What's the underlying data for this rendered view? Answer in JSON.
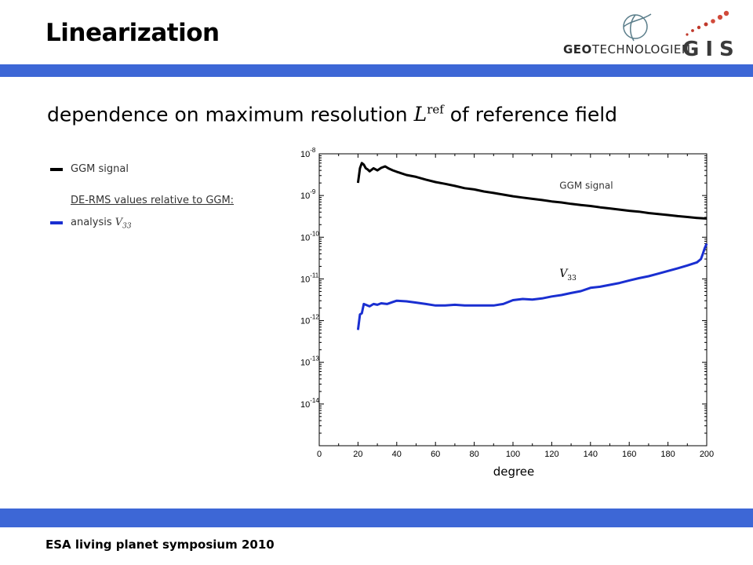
{
  "slide": {
    "title": "Linearization",
    "subtitle_prefix": "dependence on maximum resolution",
    "subtitle_symbol": "L",
    "subtitle_sup": "ref",
    "subtitle_suffix": "of reference field",
    "footer": "ESA living planet symposium 2010",
    "logo_geo_bold": "GEO",
    "logo_geo_light": "TECHNOLOGIEN",
    "logo_gis": "GIS"
  },
  "legend": {
    "signal_label": "GGM signal",
    "heading": "DE-RMS values relative to GGM:",
    "analysis_prefix": "analysis",
    "analysis_symbol": "V",
    "analysis_sub": "33"
  },
  "colors": {
    "band": "#3d67d6",
    "signal": "#000000",
    "analysis": "#1a2fd1"
  },
  "chart_data": {
    "type": "line",
    "xlabel": "degree",
    "ylabel": "",
    "xlim": [
      0,
      200
    ],
    "ylim": [
      1e-15,
      1e-08
    ],
    "yscale": "log",
    "grid": false,
    "x_ticks": [
      "0",
      "20",
      "40",
      "60",
      "80",
      "100",
      "120",
      "140",
      "160",
      "180",
      "200"
    ],
    "y_ticks": [
      {
        "base": "10",
        "exp": "-8"
      },
      {
        "base": "10",
        "exp": "-9"
      },
      {
        "base": "10",
        "exp": "-10"
      },
      {
        "base": "10",
        "exp": "-11"
      },
      {
        "base": "10",
        "exp": "-12"
      },
      {
        "base": "10",
        "exp": "-13"
      },
      {
        "base": "10",
        "exp": "-14"
      }
    ],
    "series": [
      {
        "name": "GGM signal",
        "label_text": "GGM signal",
        "x": [
          20,
          21,
          22,
          23,
          24,
          25,
          26,
          28,
          30,
          32,
          34,
          36,
          38,
          40,
          45,
          50,
          55,
          60,
          65,
          70,
          75,
          80,
          85,
          90,
          95,
          100,
          105,
          110,
          115,
          120,
          125,
          130,
          135,
          140,
          145,
          150,
          155,
          160,
          165,
          170,
          175,
          180,
          185,
          190,
          195,
          200
        ],
        "y": [
          2e-09,
          4.5e-09,
          6e-09,
          5.5e-09,
          4.5e-09,
          4.2e-09,
          3.8e-09,
          4.5e-09,
          4e-09,
          4.6e-09,
          5e-09,
          4.4e-09,
          4e-09,
          3.7e-09,
          3.1e-09,
          2.8e-09,
          2.4e-09,
          2.1e-09,
          1.9e-09,
          1.7e-09,
          1.5e-09,
          1.4e-09,
          1.25e-09,
          1.15e-09,
          1.05e-09,
          9.6e-10,
          8.9e-10,
          8.3e-10,
          7.8e-10,
          7.2e-10,
          6.8e-10,
          6.3e-10,
          5.9e-10,
          5.6e-10,
          5.2e-10,
          4.9e-10,
          4.6e-10,
          4.3e-10,
          4.1e-10,
          3.8e-10,
          3.6e-10,
          3.4e-10,
          3.2e-10,
          3.05e-10,
          2.9e-10,
          2.8e-10
        ]
      },
      {
        "name": "V 33",
        "label_symbol": "V",
        "label_sub": "33",
        "x": [
          20,
          21,
          22,
          23,
          24,
          26,
          28,
          30,
          32,
          35,
          38,
          40,
          45,
          50,
          55,
          60,
          65,
          70,
          75,
          80,
          85,
          90,
          95,
          100,
          105,
          110,
          115,
          120,
          125,
          130,
          135,
          140,
          145,
          150,
          155,
          160,
          165,
          170,
          175,
          180,
          185,
          190,
          195,
          197,
          198,
          199,
          200
        ],
        "y": [
          6e-13,
          1.4e-12,
          1.5e-12,
          2.5e-12,
          2.4e-12,
          2.2e-12,
          2.5e-12,
          2.4e-12,
          2.6e-12,
          2.5e-12,
          2.8e-12,
          3e-12,
          2.9e-12,
          2.7e-12,
          2.5e-12,
          2.3e-12,
          2.3e-12,
          2.4e-12,
          2.3e-12,
          2.3e-12,
          2.3e-12,
          2.3e-12,
          2.5e-12,
          3.1e-12,
          3.3e-12,
          3.2e-12,
          3.4e-12,
          3.8e-12,
          4.1e-12,
          4.6e-12,
          5.1e-12,
          6.1e-12,
          6.5e-12,
          7.2e-12,
          8e-12,
          9.2e-12,
          1.04e-11,
          1.16e-11,
          1.34e-11,
          1.55e-11,
          1.8e-11,
          2.1e-11,
          2.5e-11,
          3e-11,
          4e-11,
          5.5e-11,
          7e-11
        ]
      }
    ]
  }
}
